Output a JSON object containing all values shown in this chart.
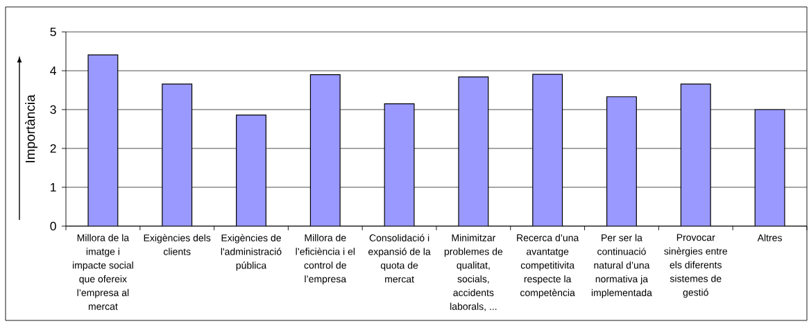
{
  "chart_data": {
    "type": "bar",
    "ylabel": "Importància",
    "categories": [
      "Millora de la imatge i impacte social que ofereix l’empresa al mercat",
      "Exigències dels clients",
      "Exigències de l'administració pública",
      "Millora de l’eficiència i el control de l’empresa",
      "Consolidació i expansió de la quota de mercat",
      "Minimitzar problemes de qualitat, socials, accidents laborals, ...",
      "Recerca d’una avantatge competitivita respecte la competència",
      "Per ser la continuació natural d’una normativa ja implementada",
      "Provocar sinèrgies entre els diferents sistemes de gestió",
      "Altres"
    ],
    "values": [
      4.41,
      3.66,
      2.86,
      3.9,
      3.15,
      3.84,
      3.91,
      3.33,
      3.66,
      3.0
    ],
    "color": "#9999ff",
    "ylim": [
      0,
      5
    ],
    "yticks": [
      0,
      1,
      2,
      3,
      4,
      5
    ],
    "grid": "y"
  }
}
